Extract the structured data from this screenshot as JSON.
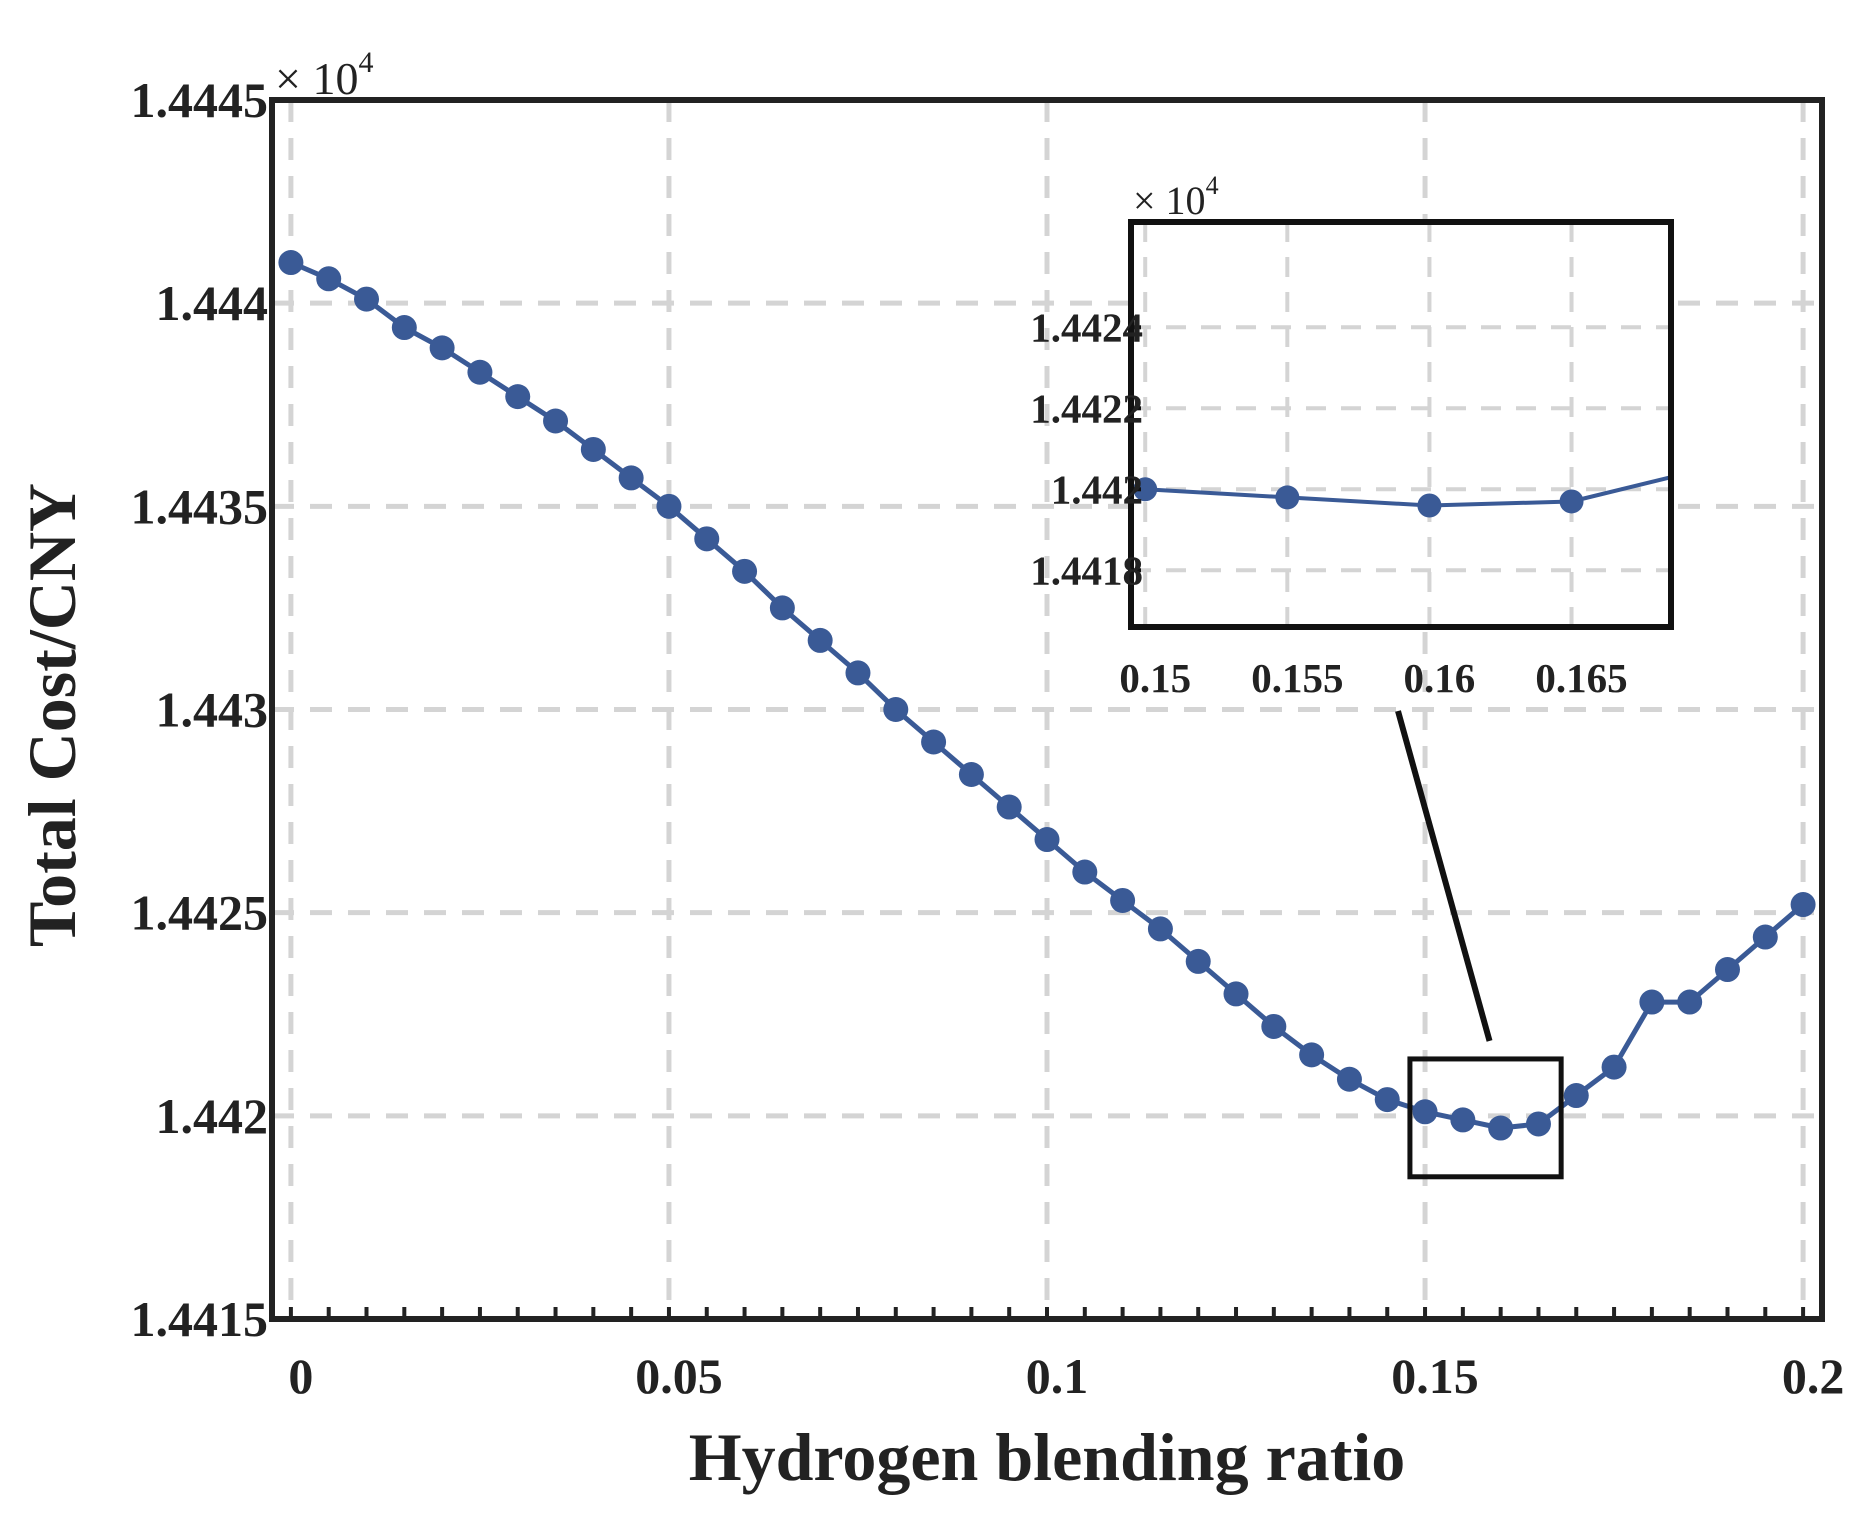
{
  "chart_data": {
    "type": "line",
    "xlabel": "Hydrogen blending ratio",
    "ylabel": "Total Cost/CNY",
    "y_exponent_label": "× 10",
    "y_exponent_power": "4",
    "xlim": [
      -0.0025,
      0.2025
    ],
    "ylim": [
      1.4415,
      1.4445
    ],
    "x_ticks": [
      0,
      0.05,
      0.1,
      0.15,
      0.2
    ],
    "x_tick_labels": [
      "0",
      "0.05",
      "0.1",
      "0.15",
      "0.2"
    ],
    "y_ticks": [
      1.4415,
      1.442,
      1.4425,
      1.443,
      1.4435,
      1.444,
      1.4445
    ],
    "y_tick_labels": [
      "1.4415",
      "1.442",
      "1.4425",
      "1.443",
      "1.4435",
      "1.444",
      "1.4445"
    ],
    "grid": true,
    "color": "#3a5a96",
    "series": [
      {
        "name": "Total Cost",
        "x": [
          0,
          0.005,
          0.01,
          0.015,
          0.02,
          0.025,
          0.03,
          0.035,
          0.04,
          0.045,
          0.05,
          0.055,
          0.06,
          0.065,
          0.07,
          0.075,
          0.08,
          0.085,
          0.09,
          0.095,
          0.1,
          0.105,
          0.11,
          0.115,
          0.12,
          0.125,
          0.13,
          0.135,
          0.14,
          0.145,
          0.15,
          0.155,
          0.16,
          0.165,
          0.17,
          0.175,
          0.18,
          0.185,
          0.19,
          0.195,
          0.2
        ],
        "y": [
          1.4441,
          1.44406,
          1.44401,
          1.44394,
          1.44389,
          1.44383,
          1.44377,
          1.44371,
          1.44364,
          1.44357,
          1.4435,
          1.44342,
          1.44334,
          1.44325,
          1.44317,
          1.44309,
          1.443,
          1.44292,
          1.44284,
          1.44276,
          1.44268,
          1.4426,
          1.44253,
          1.44246,
          1.44238,
          1.4423,
          1.44222,
          1.44215,
          1.44209,
          1.44204,
          1.44201,
          1.44199,
          1.44197,
          1.44198,
          1.44205,
          1.44212,
          1.44228,
          1.44228,
          1.44236,
          1.44244,
          1.44252
        ]
      }
    ],
    "zoom_box": {
      "x_range": [
        0.148,
        0.168
      ],
      "y_range": [
        1.44185,
        1.44214
      ]
    },
    "inset": {
      "y_exponent_label": "× 10",
      "y_exponent_power": "4",
      "xlim": [
        0.1495,
        0.1685
      ],
      "ylim": [
        1.44166,
        1.44266
      ],
      "x_ticks": [
        0.15,
        0.155,
        0.16,
        0.165
      ],
      "x_tick_labels": [
        "0.15",
        "0.155",
        "0.16",
        "0.165"
      ],
      "y_ticks": [
        1.4418,
        1.442,
        1.4422,
        1.4424
      ],
      "y_tick_labels": [
        "1.4418",
        "1.442",
        "1.4422",
        "1.4424"
      ],
      "x": [
        0.15,
        0.155,
        0.16,
        0.165,
        0.1685
      ],
      "y": [
        1.442,
        1.44198,
        1.44196,
        1.44197,
        1.44203
      ],
      "marker_count": 4
    }
  }
}
